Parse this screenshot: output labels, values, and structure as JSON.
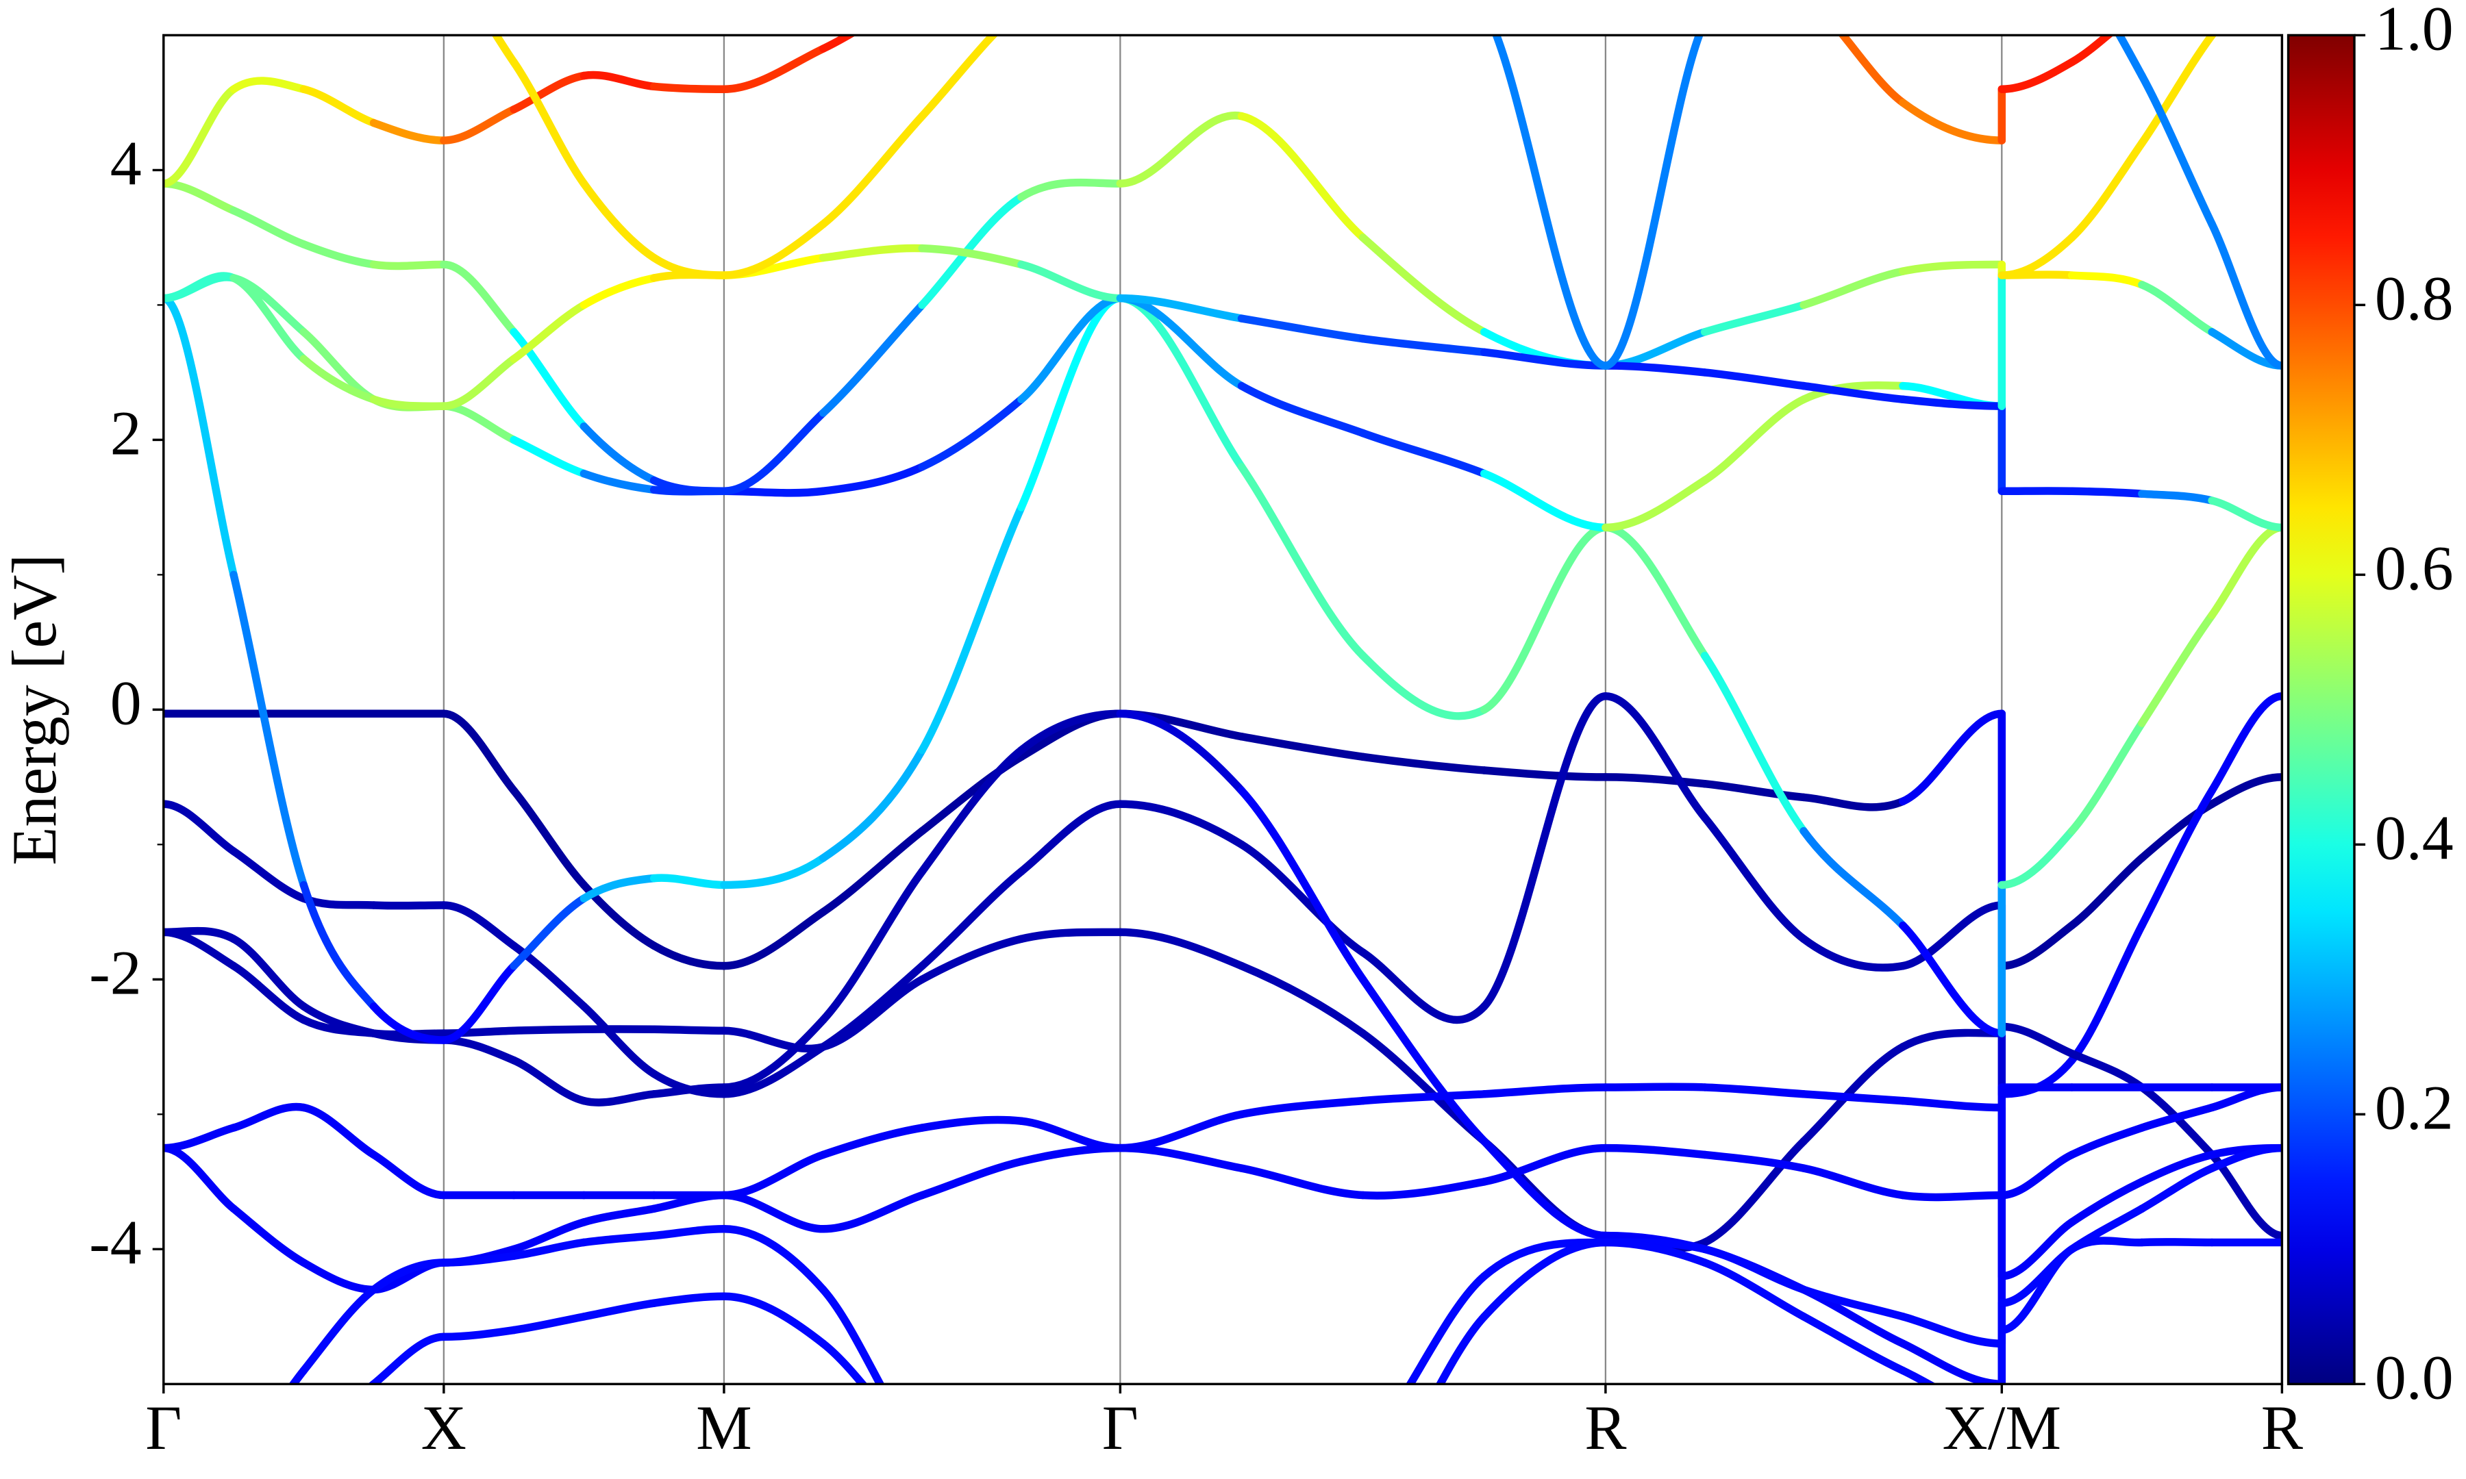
{
  "chart_data": {
    "type": "bandstructure",
    "ylabel": "Energy [eV]",
    "x": [
      0,
      0.25,
      0.5,
      0.75,
      1,
      1.25,
      1.5,
      1.75,
      2,
      2.354,
      2.707,
      3.061,
      3.414,
      3.847,
      4.28,
      4.713,
      5.146,
      5.5,
      5.853,
      6.207,
      6.56,
      6.56,
      6.81,
      7.06,
      7.31,
      7.56
    ],
    "xlim": [
      0,
      7.56
    ],
    "xticks": [
      {
        "value": 0,
        "label": "Γ"
      },
      {
        "value": 1,
        "label": "X"
      },
      {
        "value": 2,
        "label": "M"
      },
      {
        "value": 3.414,
        "label": "Γ"
      },
      {
        "value": 5.146,
        "label": "R"
      },
      {
        "value": 6.56,
        "label": "X/M"
      },
      {
        "value": 7.56,
        "label": "R"
      }
    ],
    "ylim": [
      -5,
      5
    ],
    "yticks": [
      -4,
      -2,
      0,
      2,
      4
    ],
    "yminorticks": [
      -3,
      -1,
      1,
      3
    ],
    "xgrid": true,
    "colormap": "jet",
    "clim": [
      0,
      1
    ],
    "cticks": [
      {
        "value": 0,
        "label": "0.0"
      },
      0.2,
      0.4,
      0.6,
      0.8,
      {
        "value": 1,
        "label": "1.0"
      }
    ],
    "series": [
      {
        "values": [
          -0.03,
          -0.03,
          -0.03,
          -0.03,
          -0.03,
          -0.6,
          -1.3,
          -1.75,
          -1.9,
          -1.5,
          -0.9,
          -0.35,
          -0.03,
          -0.2,
          -0.35,
          -0.45,
          -0.5,
          -0.55,
          -0.65,
          -0.68,
          -0.03,
          -1.9,
          -1.6,
          -1.1,
          -0.7,
          -0.5
        ],
        "weights": [
          0.03,
          0.03,
          0.03,
          0.03,
          0.03,
          0.03,
          0.03,
          0.03,
          0.03,
          0.03,
          0.03,
          0.03,
          0.03,
          0.03,
          0.03,
          0.03,
          0.03,
          0.03,
          0.03,
          0.03,
          0.2,
          0.03,
          0.03,
          0.03,
          0.03,
          0.03
        ]
      },
      {
        "values": [
          -0.7,
          -1.05,
          -1.4,
          -1.45,
          -1.45,
          -1.75,
          -2.2,
          -2.7,
          -2.85,
          -2.5,
          -1.9,
          -1.2,
          -0.7,
          -1.0,
          -1.8,
          -2.2,
          0.1,
          -0.8,
          -1.7,
          -1.9,
          -1.45,
          -2.85,
          -2.6,
          -1.6,
          -0.6,
          0.1
        ],
        "weights": [
          0.05,
          0.05,
          0.05,
          0.05,
          0.05,
          0.05,
          0.05,
          0.05,
          0.05,
          0.05,
          0.05,
          0.05,
          0.05,
          0.05,
          0.05,
          0.05,
          0.05,
          0.05,
          0.05,
          0.05,
          0.05,
          0.12,
          0.12,
          0.12,
          0.12,
          0.12
        ]
      },
      {
        "values": [
          -1.65,
          -1.9,
          -2.3,
          -2.4,
          -2.4,
          -2.38,
          -2.37,
          -2.37,
          -2.38,
          -2.5,
          -2.0,
          -1.7,
          -1.65,
          -1.9,
          -2.4,
          -3.2,
          -3.9,
          -3.95,
          -3.2,
          -2.5,
          -2.4,
          -2.35,
          -2.55,
          -2.8,
          -3.3,
          -3.9
        ],
        "weights": [
          0.05,
          0.05,
          0.05,
          0.05,
          0.05,
          0.05,
          0.05,
          0.05,
          0.05,
          0.05,
          0.05,
          0.05,
          0.05,
          0.05,
          0.05,
          0.05,
          0.05,
          0.05,
          0.05,
          0.05,
          0.05,
          0.05,
          0.05,
          0.05,
          0.05,
          0.05
        ]
      },
      {
        "values": [
          -1.65,
          -1.7,
          -2.2,
          -2.4,
          -2.45,
          -2.6,
          -2.9,
          -2.85,
          -2.8,
          -2.3,
          -1.2,
          -0.3,
          -0.03,
          -0.6,
          -2.0,
          -3.2,
          -3.9,
          -4.0,
          -4.3,
          -4.7,
          -5.0,
          -2.8,
          -2.8,
          -2.8,
          -2.8,
          -2.8
        ],
        "weights": [
          0.05,
          0.05,
          0.05,
          0.05,
          0.05,
          0.05,
          0.05,
          0.05,
          0.05,
          0.05,
          0.05,
          0.05,
          0.05,
          0.12,
          0.12,
          0.12,
          0.12,
          0.12,
          0.12,
          0.12,
          0.12,
          0.12,
          0.12,
          0.12,
          0.12,
          0.12
        ]
      },
      {
        "values": [
          -3.25,
          -3.1,
          -2.95,
          -3.3,
          -3.6,
          -3.6,
          -3.6,
          -3.6,
          -3.6,
          -3.3,
          -3.1,
          -3.05,
          -3.25,
          -3.0,
          -2.9,
          -2.85,
          -2.8,
          -2.8,
          -2.85,
          -2.9,
          -2.95,
          -3.6,
          -3.3,
          -3.1,
          -2.95,
          -2.8
        ],
        "weights": [
          0.12,
          0.12,
          0.12,
          0.12,
          0.12,
          0.12,
          0.12,
          0.12,
          0.12,
          0.12,
          0.12,
          0.12,
          0.12,
          0.12,
          0.12,
          0.12,
          0.12,
          0.12,
          0.12,
          0.12,
          0.12,
          0.12,
          0.12,
          0.12,
          0.12,
          0.12
        ]
      },
      {
        "values": [
          -3.25,
          -3.7,
          -4.1,
          -4.3,
          -4.1,
          -4.0,
          -3.8,
          -3.7,
          -3.6,
          -3.85,
          -3.6,
          -3.35,
          -3.25,
          -3.4,
          -3.6,
          -3.5,
          -3.25,
          -3.3,
          -3.4,
          -3.6,
          -3.6,
          -4.2,
          -3.8,
          -3.5,
          -3.3,
          -3.25
        ],
        "weights": [
          0.12,
          0.12,
          0.12,
          0.12,
          0.12,
          0.12,
          0.12,
          0.12,
          0.12,
          0.12,
          0.12,
          0.12,
          0.12,
          0.12,
          0.12,
          0.12,
          0.12,
          0.12,
          0.12,
          0.12,
          0.12,
          0.12,
          0.12,
          0.12,
          0.12,
          0.12
        ]
      },
      {
        "values": [
          3.05,
          1.0,
          -1.3,
          -2.2,
          -2.45,
          -1.9,
          -1.4,
          -1.25,
          -1.3,
          -1.1,
          -0.3,
          1.5,
          3.05,
          1.8,
          0.4,
          0.0,
          1.35,
          0.4,
          -0.9,
          -1.6,
          -2.4,
          -1.3,
          -0.9,
          -0.1,
          0.7,
          1.35
        ],
        "weights": [
          0.35,
          0.3,
          0.2,
          0.15,
          0.1,
          0.15,
          0.25,
          0.35,
          0.35,
          0.3,
          0.3,
          0.35,
          0.4,
          0.45,
          0.45,
          0.45,
          0.5,
          0.45,
          0.35,
          0.15,
          0.1,
          0.45,
          0.45,
          0.5,
          0.55,
          0.55
        ]
      },
      {
        "values": [
          3.05,
          3.2,
          2.8,
          2.3,
          2.25,
          2.0,
          1.75,
          1.63,
          1.62,
          1.62,
          1.8,
          2.3,
          3.05,
          2.4,
          2.05,
          1.75,
          1.35,
          1.7,
          2.3,
          2.4,
          2.25,
          1.62,
          1.62,
          1.6,
          1.55,
          1.35
        ],
        "weights": [
          0.4,
          0.45,
          0.5,
          0.5,
          0.55,
          0.45,
          0.3,
          0.2,
          0.15,
          0.15,
          0.15,
          0.2,
          0.35,
          0.2,
          0.15,
          0.2,
          0.55,
          0.55,
          0.55,
          0.55,
          0.2,
          0.15,
          0.15,
          0.15,
          0.35,
          0.55
        ]
      },
      {
        "values": [
          3.9,
          3.7,
          3.45,
          3.3,
          3.3,
          2.8,
          2.1,
          1.7,
          1.62,
          2.2,
          3.0,
          3.8,
          3.9,
          4.4,
          3.5,
          2.8,
          2.55,
          2.8,
          3.0,
          3.25,
          3.3,
          3.22,
          3.22,
          3.15,
          2.8,
          2.55
        ],
        "weights": [
          0.55,
          0.5,
          0.5,
          0.5,
          0.55,
          0.45,
          0.3,
          0.2,
          0.15,
          0.2,
          0.3,
          0.5,
          0.5,
          0.6,
          0.6,
          0.5,
          0.25,
          0.35,
          0.5,
          0.55,
          0.55,
          0.65,
          0.65,
          0.6,
          0.35,
          0.2
        ]
      },
      {
        "values": [
          3.05,
          3.2,
          2.6,
          2.3,
          2.25,
          2.6,
          3.0,
          3.2,
          3.22,
          3.35,
          3.42,
          3.3,
          3.05,
          2.9,
          2.75,
          2.65,
          2.55,
          2.5,
          2.4,
          2.3,
          2.25,
          3.22,
          3.5,
          4.2,
          5.0,
          5.6
        ],
        "weights": [
          0.4,
          0.45,
          0.5,
          0.55,
          0.55,
          0.55,
          0.6,
          0.65,
          0.65,
          0.6,
          0.55,
          0.5,
          0.4,
          0.2,
          0.2,
          0.18,
          0.15,
          0.15,
          0.15,
          0.15,
          0.15,
          0.65,
          0.65,
          0.65,
          0.65,
          0.65
        ]
      },
      {
        "values": [
          3.9,
          4.6,
          4.6,
          4.35,
          4.22,
          4.45,
          4.7,
          4.62,
          4.6,
          4.9,
          5.3,
          5.5,
          5.6,
          5.5,
          5.5,
          5.5,
          5.5,
          5.5,
          5.3,
          4.5,
          4.22,
          4.6,
          4.8,
          5.2,
          5.5,
          5.6
        ],
        "weights": [
          0.55,
          0.6,
          0.6,
          0.7,
          0.75,
          0.8,
          0.85,
          0.85,
          0.8,
          0.85,
          0.85,
          0.85,
          0.85,
          0.8,
          0.8,
          0.8,
          0.8,
          0.8,
          0.8,
          0.75,
          0.75,
          0.85,
          0.85,
          0.85,
          0.85,
          0.85
        ]
      },
      {
        "values": [
          5.6,
          5.5,
          5.6,
          5.5,
          5.4,
          4.8,
          3.9,
          3.35,
          3.22,
          3.6,
          4.4,
          5.2,
          5.6,
          5.6,
          5.6,
          5.6,
          5.6,
          5.6,
          5.6,
          5.6,
          5.6,
          5.6,
          5.6,
          5.6,
          5.6,
          5.6
        ],
        "weights": [
          0.65,
          0.65,
          0.65,
          0.65,
          0.65,
          0.65,
          0.65,
          0.65,
          0.65,
          0.65,
          0.65,
          0.65,
          0.65,
          0.65,
          0.65,
          0.65,
          0.65,
          0.65,
          0.65,
          0.65,
          0.65,
          0.65,
          0.65,
          0.65,
          0.65,
          0.65
        ]
      },
      {
        "values": [
          5.6,
          5.6,
          5.6,
          5.6,
          5.6,
          5.6,
          5.6,
          5.6,
          5.6,
          5.6,
          5.6,
          5.6,
          5.6,
          5.6,
          5.6,
          5.2,
          2.55,
          5.1,
          5.6,
          5.6,
          5.6,
          5.6,
          5.5,
          4.7,
          3.6,
          2.55
        ],
        "weights": [
          0.25,
          0.25,
          0.25,
          0.25,
          0.25,
          0.25,
          0.25,
          0.25,
          0.25,
          0.25,
          0.25,
          0.25,
          0.25,
          0.25,
          0.25,
          0.25,
          0.25,
          0.25,
          0.25,
          0.25,
          0.25,
          0.25,
          0.25,
          0.25,
          0.25,
          0.25
        ]
      },
      {
        "values": [
          -6,
          -5.6,
          -4.9,
          -4.3,
          -4.1,
          -4.05,
          -3.95,
          -3.9,
          -3.85,
          -4.3,
          -5.5,
          -6,
          -6,
          -6,
          -5.5,
          -4.2,
          -3.95,
          -4.0,
          -4.3,
          -4.5,
          -4.7,
          -4.4,
          -4.0,
          -3.7,
          -3.4,
          -3.25
        ],
        "weights": [
          0.13,
          0.13,
          0.13,
          0.13,
          0.13,
          0.13,
          0.13,
          0.13,
          0.13,
          0.13,
          0.13,
          0.13,
          0.13,
          0.13,
          0.13,
          0.13,
          0.13,
          0.13,
          0.13,
          0.13,
          0.13,
          0.13,
          0.13,
          0.13,
          0.13,
          0.13
        ]
      },
      {
        "values": [
          -6,
          -6,
          -5.5,
          -5.0,
          -4.65,
          -4.6,
          -4.5,
          -4.4,
          -4.35,
          -4.7,
          -5.5,
          -6,
          -6,
          -6,
          -5.9,
          -4.5,
          -3.95,
          -4.1,
          -4.5,
          -4.9,
          -5.2,
          -4.6,
          -4.0,
          -3.95,
          -3.95,
          -3.95
        ],
        "weights": [
          0.13,
          0.13,
          0.13,
          0.13,
          0.13,
          0.13,
          0.13,
          0.13,
          0.13,
          0.13,
          0.13,
          0.13,
          0.13,
          0.13,
          0.13,
          0.13,
          0.13,
          0.13,
          0.13,
          0.13,
          0.13,
          0.13,
          0.13,
          0.13,
          0.13,
          0.13
        ]
      }
    ]
  }
}
